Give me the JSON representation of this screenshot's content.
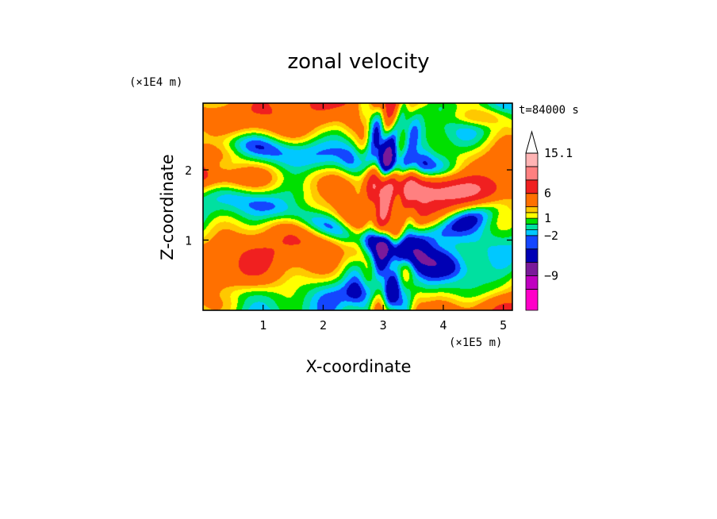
{
  "chart_data": {
    "type": "heatmap",
    "title": "zonal velocity",
    "xlabel": "X-coordinate",
    "ylabel": "Z-coordinate",
    "x_scale_label": "(×1E5 m)",
    "y_scale_label": "(×1E4 m)",
    "time_label": "t=84000 s",
    "xlim": [
      0,
      5.15
    ],
    "ylim": [
      0,
      2.95
    ],
    "x_ticks": [
      1,
      2,
      3,
      4,
      5
    ],
    "y_ticks": [
      1,
      2
    ],
    "colorbar": {
      "levels": [
        -15,
        -12,
        -9,
        -6,
        -3,
        -2,
        -1,
        0,
        1,
        2,
        3,
        6,
        9,
        12,
        15.1
      ],
      "tick_values": [
        15.1,
        6,
        1,
        -2,
        -9
      ],
      "tick_labels": [
        "15.1",
        "6",
        "1",
        "−2",
        "−9"
      ],
      "colors": [
        "#ff00c8",
        "#c000c0",
        "#7a1a9a",
        "#0000b4",
        "#1446ff",
        "#00c8ff",
        "#00e0a0",
        "#00e000",
        "#ffff00",
        "#ffc800",
        "#ff7000",
        "#f02020",
        "#ff8080",
        "#ffb4b4"
      ],
      "extend": "max"
    }
  }
}
